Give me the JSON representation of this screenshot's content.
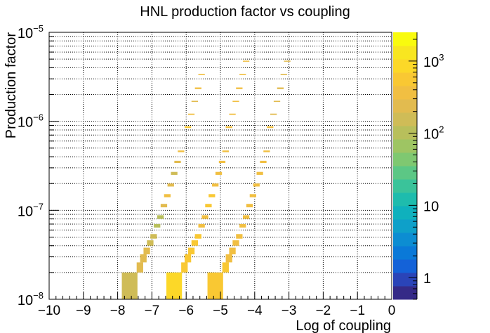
{
  "chart_data": {
    "type": "heatmap",
    "title": "HNL production factor vs coupling",
    "xlabel": "Log of coupling",
    "ylabel": "Production factor",
    "xlim": [
      -10,
      0
    ],
    "ylim": [
      1e-08,
      1e-05
    ],
    "y_scale": "log",
    "z_scale": "log",
    "zlim": [
      0.5,
      2500
    ],
    "grid": true,
    "x_ticks": [
      "−10",
      "−9",
      "−8",
      "−7",
      "−6",
      "−5",
      "−4",
      "−3",
      "−2",
      "−1",
      "0"
    ],
    "x_tick_values": [
      -10,
      -9,
      -8,
      -7,
      -6,
      -5,
      -4,
      -3,
      -2,
      -1,
      0
    ],
    "y_ticks": [
      {
        "value": 1e-08,
        "base": "10",
        "exp": "−8"
      },
      {
        "value": 1e-07,
        "base": "10",
        "exp": "−7"
      },
      {
        "value": 1e-06,
        "base": "10",
        "exp": "−6"
      },
      {
        "value": 1e-05,
        "base": "10",
        "exp": "−5"
      }
    ],
    "z_ticks": [
      {
        "value": 1,
        "base": "1",
        "exp": ""
      },
      {
        "value": 10,
        "base": "10",
        "exp": ""
      },
      {
        "value": 100,
        "base": "10",
        "exp": "2"
      },
      {
        "value": 1000,
        "base": "10",
        "exp": "3"
      }
    ],
    "palette": [
      "#352a87",
      "#2a44b8",
      "#1462d8",
      "#0a79d8",
      "#0c8dd2",
      "#0ea0c9",
      "#0fb1bd",
      "#1ebcad",
      "#3ac39a",
      "#5cc785",
      "#7fc871",
      "#9ec563",
      "#b8bf5b",
      "#cfbc57",
      "#e2bb4f",
      "#f1bf42",
      "#f9c833",
      "#fcd828",
      "#f8e620",
      "#f9fb0e"
    ],
    "bands": [
      {
        "name": "",
        "cells": [
          {
            "x": -7.65,
            "y0": 1e-08,
            "y1": 2e-08,
            "z": 150
          },
          {
            "x": -7.35,
            "y0": 2e-08,
            "y1": 2.6e-08,
            "z": 200
          },
          {
            "x": -7.25,
            "y0": 2.6e-08,
            "y1": 3.2e-08,
            "z": 200
          },
          {
            "x": -7.15,
            "y0": 3.2e-08,
            "y1": 3.8e-08,
            "z": 200
          },
          {
            "x": -7.05,
            "y0": 4e-08,
            "y1": 4.6e-08,
            "z": 180
          },
          {
            "x": -6.95,
            "y0": 4.8e-08,
            "y1": 5.4e-08,
            "z": 150
          },
          {
            "x": -6.85,
            "y0": 6.4e-08,
            "y1": 7e-08,
            "z": 120
          },
          {
            "x": -6.75,
            "y0": 8e-08,
            "y1": 8.8e-08,
            "z": 100
          },
          {
            "x": -6.65,
            "y0": 1.08e-07,
            "y1": 1.18e-07,
            "z": 250
          },
          {
            "x": -6.55,
            "y0": 1.4e-07,
            "y1": 1.52e-07,
            "z": 300
          },
          {
            "x": -6.45,
            "y0": 1.85e-07,
            "y1": 2e-07,
            "z": 200
          },
          {
            "x": -6.35,
            "y0": 2.5e-07,
            "y1": 2.7e-07,
            "z": 150
          },
          {
            "x": -6.25,
            "y0": 3.4e-07,
            "y1": 3.6e-07,
            "z": 200
          },
          {
            "x": -6.15,
            "y0": 4.5e-07,
            "y1": 4.7e-07,
            "z": 300
          },
          {
            "x": -5.95,
            "y0": 8.4e-07,
            "y1": 8.8e-07,
            "z": 500
          },
          {
            "x": -5.85,
            "y0": 1.18e-06,
            "y1": 1.22e-06,
            "z": 300
          },
          {
            "x": -5.75,
            "y0": 1.65e-06,
            "y1": 1.7e-06,
            "z": 250
          },
          {
            "x": -5.65,
            "y0": 2.3e-06,
            "y1": 2.4e-06,
            "z": 300
          },
          {
            "x": -5.55,
            "y0": 3.3e-06,
            "y1": 3.4e-06,
            "z": 300
          }
        ]
      },
      {
        "name": "",
        "cells": [
          {
            "x": -6.35,
            "y0": 1e-08,
            "y1": 2e-08,
            "z": 700
          },
          {
            "x": -6.05,
            "y0": 2e-08,
            "y1": 2.6e-08,
            "z": 600
          },
          {
            "x": -5.95,
            "y0": 2.6e-08,
            "y1": 3.2e-08,
            "z": 500
          },
          {
            "x": -5.85,
            "y0": 3.2e-08,
            "y1": 3.8e-08,
            "z": 500
          },
          {
            "x": -5.75,
            "y0": 4e-08,
            "y1": 4.6e-08,
            "z": 500
          },
          {
            "x": -5.65,
            "y0": 4.8e-08,
            "y1": 5.4e-08,
            "z": 500
          },
          {
            "x": -5.55,
            "y0": 6.4e-08,
            "y1": 7e-08,
            "z": 400
          },
          {
            "x": -5.45,
            "y0": 8e-08,
            "y1": 8.8e-08,
            "z": 300
          },
          {
            "x": -5.35,
            "y0": 1.08e-07,
            "y1": 1.18e-07,
            "z": 500
          },
          {
            "x": -5.25,
            "y0": 1.4e-07,
            "y1": 1.52e-07,
            "z": 500
          },
          {
            "x": -5.15,
            "y0": 1.85e-07,
            "y1": 2e-07,
            "z": 400
          },
          {
            "x": -5.05,
            "y0": 2.5e-07,
            "y1": 2.7e-07,
            "z": 400
          },
          {
            "x": -4.95,
            "y0": 3.4e-07,
            "y1": 3.6e-07,
            "z": 400
          },
          {
            "x": -4.85,
            "y0": 4.5e-07,
            "y1": 4.7e-07,
            "z": 300
          },
          {
            "x": -4.75,
            "y0": 8.4e-07,
            "y1": 8.8e-07,
            "z": 400
          },
          {
            "x": -4.65,
            "y0": 1.18e-06,
            "y1": 1.22e-06,
            "z": 300
          },
          {
            "x": -4.55,
            "y0": 1.65e-06,
            "y1": 1.7e-06,
            "z": 400
          },
          {
            "x": -4.45,
            "y0": 2.3e-06,
            "y1": 2.4e-06,
            "z": 400
          },
          {
            "x": -4.35,
            "y0": 3.3e-06,
            "y1": 3.4e-06,
            "z": 400
          },
          {
            "x": -4.25,
            "y0": 4.7e-06,
            "y1": 4.8e-06,
            "z": 400
          }
        ]
      },
      {
        "name": "",
        "cells": [
          {
            "x": -5.15,
            "y0": 1e-08,
            "y1": 2e-08,
            "z": 500
          },
          {
            "x": -4.85,
            "y0": 2e-08,
            "y1": 2.6e-08,
            "z": 500
          },
          {
            "x": -4.75,
            "y0": 2.6e-08,
            "y1": 3.2e-08,
            "z": 400
          },
          {
            "x": -4.65,
            "y0": 3.2e-08,
            "y1": 3.8e-08,
            "z": 400
          },
          {
            "x": -4.55,
            "y0": 4e-08,
            "y1": 4.6e-08,
            "z": 400
          },
          {
            "x": -4.45,
            "y0": 4.8e-08,
            "y1": 5.4e-08,
            "z": 400
          },
          {
            "x": -4.35,
            "y0": 6.4e-08,
            "y1": 7e-08,
            "z": 400
          },
          {
            "x": -4.25,
            "y0": 8e-08,
            "y1": 8.8e-08,
            "z": 300
          },
          {
            "x": -4.15,
            "y0": 1.08e-07,
            "y1": 1.18e-07,
            "z": 400
          },
          {
            "x": -4.05,
            "y0": 1.4e-07,
            "y1": 1.52e-07,
            "z": 300
          },
          {
            "x": -3.95,
            "y0": 1.85e-07,
            "y1": 2e-07,
            "z": 300
          },
          {
            "x": -3.85,
            "y0": 2.5e-07,
            "y1": 2.7e-07,
            "z": 300
          },
          {
            "x": -3.75,
            "y0": 3.4e-07,
            "y1": 3.6e-07,
            "z": 300
          },
          {
            "x": -3.65,
            "y0": 4.5e-07,
            "y1": 4.7e-07,
            "z": 300
          },
          {
            "x": -3.55,
            "y0": 8.4e-07,
            "y1": 8.8e-07,
            "z": 300
          },
          {
            "x": -3.45,
            "y0": 1.18e-06,
            "y1": 1.22e-06,
            "z": 200
          },
          {
            "x": -3.35,
            "y0": 1.65e-06,
            "y1": 1.7e-06,
            "z": 200
          },
          {
            "x": -3.25,
            "y0": 2.3e-06,
            "y1": 2.4e-06,
            "z": 200
          },
          {
            "x": -3.15,
            "y0": 3.3e-06,
            "y1": 3.4e-06,
            "z": 200
          },
          {
            "x": -3.05,
            "y0": 4.7e-06,
            "y1": 4.8e-06,
            "z": 200
          }
        ]
      }
    ]
  }
}
